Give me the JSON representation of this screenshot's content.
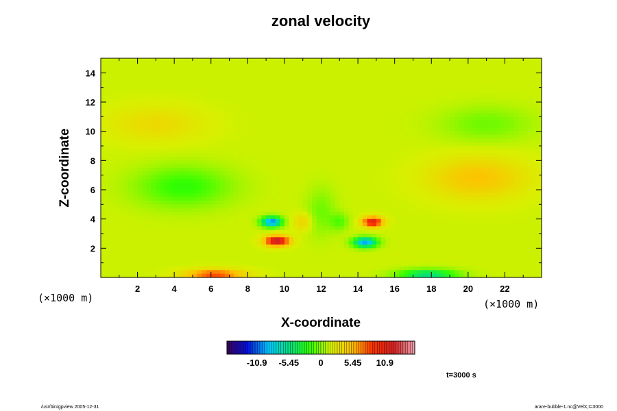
{
  "chart_data": {
    "type": "heatmap",
    "title": "zonal velocity",
    "xlabel": "X-coordinate",
    "ylabel": "Z-coordinate",
    "x_unit_label": "(×1000 m)",
    "y_unit_label": "(×1000 m)",
    "xlim": [
      0,
      24
    ],
    "ylim": [
      0,
      15
    ],
    "x_ticks": [
      2,
      4,
      6,
      8,
      10,
      12,
      14,
      16,
      18,
      20,
      22
    ],
    "y_ticks": [
      2,
      4,
      6,
      8,
      10,
      12,
      14
    ],
    "grid": false,
    "colorscale": {
      "min": -16,
      "max": 16,
      "tick_labels": [
        "-10.9",
        "-5.45",
        "0",
        "5.45",
        "10.9"
      ],
      "tick_values": [
        -10.9,
        -5.45,
        0,
        5.45,
        10.9
      ],
      "colors": [
        "#3a005a",
        "#0010e0",
        "#00c8ff",
        "#00e080",
        "#33ff00",
        "#d8f000",
        "#ffc000",
        "#ff3000",
        "#d02020",
        "#f0a0b0"
      ]
    },
    "background_value": 1.5,
    "features": [
      {
        "x": 9.3,
        "z": 3.8,
        "value": -12,
        "sx": 0.55,
        "sz": 0.35
      },
      {
        "x": 9.6,
        "z": 2.5,
        "value": 12,
        "sx": 0.65,
        "sz": 0.35
      },
      {
        "x": 14.8,
        "z": 3.8,
        "value": 10,
        "sx": 0.55,
        "sz": 0.35
      },
      {
        "x": 14.4,
        "z": 2.4,
        "value": -11,
        "sx": 0.65,
        "sz": 0.35
      },
      {
        "x": 6.2,
        "z": 0.2,
        "value": 7,
        "sx": 1.6,
        "sz": 0.35
      },
      {
        "x": 17.8,
        "z": 0.2,
        "value": -7,
        "sx": 1.6,
        "sz": 0.35
      },
      {
        "x": 4.5,
        "z": 6.2,
        "value": -3.5,
        "sx": 2.6,
        "sz": 1.4
      },
      {
        "x": 20.5,
        "z": 6.8,
        "value": 3.5,
        "sx": 2.6,
        "sz": 1.4
      },
      {
        "x": 12,
        "z": 4.5,
        "value": -2,
        "sx": 0.8,
        "sz": 1.6
      },
      {
        "x": 3,
        "z": 10.5,
        "value": 2,
        "sx": 2.5,
        "sz": 1.2
      },
      {
        "x": 21,
        "z": 10.5,
        "value": -2,
        "sx": 2.5,
        "sz": 1.2
      },
      {
        "x": 11,
        "z": 3.8,
        "value": 2.5,
        "sx": 0.5,
        "sz": 0.6
      },
      {
        "x": 13,
        "z": 3.8,
        "value": -2.5,
        "sx": 0.5,
        "sz": 0.6
      }
    ]
  },
  "footer": {
    "time_label": "t=3000 s",
    "left_note": "/usr/bin/gpview 2005-12-31",
    "right_note": "arare-bubble-1.nc@VelX,t=3000"
  }
}
